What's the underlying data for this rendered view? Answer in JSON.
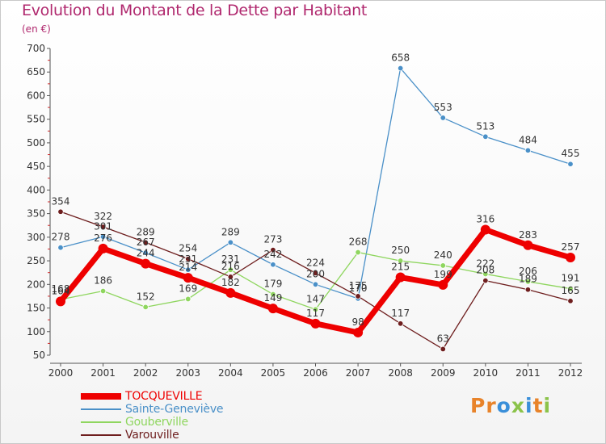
{
  "title": "Evolution du Montant de la Dette par Habitant",
  "unit_label": "(en €)",
  "brand": {
    "text": "Proxiti",
    "letters": [
      "P",
      "r",
      "o",
      "x",
      "i",
      "t",
      "i"
    ],
    "colors": [
      "#e8832a",
      "#e8832a",
      "#3a8fd9",
      "#8bc34a",
      "#3a8fd9",
      "#e8832a",
      "#8bc34a"
    ]
  },
  "chart_data": {
    "type": "line",
    "title": "Evolution du Montant de la Dette par Habitant",
    "xlabel": "",
    "ylabel": "(en €)",
    "x": [
      "2000",
      "2001",
      "2002",
      "2003",
      "2004",
      "2005",
      "2006",
      "2007",
      "2008",
      "2009",
      "2010",
      "2011",
      "2012"
    ],
    "ylim": [
      50,
      700
    ],
    "yticks": [
      50,
      100,
      150,
      200,
      250,
      300,
      350,
      400,
      450,
      500,
      550,
      600,
      650,
      700
    ],
    "grid": false,
    "legend_position": "bottom-left",
    "series": [
      {
        "name": "TOCQUEVILLE",
        "color": "#ee0000",
        "values": [
          164,
          276,
          244,
          214,
          182,
          149,
          117,
          98,
          215,
          199,
          316,
          283,
          257
        ],
        "labels": [
          "164",
          "276",
          "244",
          "214",
          "182",
          "149",
          "117",
          "98",
          "215",
          "199",
          "316",
          "283",
          "257"
        ]
      },
      {
        "name": "Sainte-Geneviève",
        "color": "#4a90c8",
        "values": [
          278,
          301,
          267,
          231,
          289,
          242,
          200,
          170,
          658,
          553,
          513,
          484,
          455
        ],
        "labels": [
          "278",
          "301",
          "267",
          "231",
          "289",
          "242",
          "200",
          "170",
          "658",
          "553",
          "513",
          "484",
          "455"
        ]
      },
      {
        "name": "Gouberville",
        "color": "#8fd65f",
        "values": [
          168,
          186,
          152,
          169,
          231,
          179,
          147,
          268,
          250,
          240,
          222,
          206,
          191
        ],
        "labels": [
          "168",
          "186",
          "152",
          "169",
          "231",
          "179",
          "147",
          "268",
          "250",
          "240",
          "222",
          "206",
          "191"
        ]
      },
      {
        "name": "Varouville",
        "color": "#6e1e1e",
        "values": [
          354,
          322,
          289,
          254,
          216,
          273,
          224,
          175,
          117,
          63,
          208,
          189,
          165
        ],
        "labels": [
          "354",
          "322",
          "289",
          "254",
          "216",
          "273",
          "224",
          "175",
          "117",
          "63",
          "208",
          "189",
          "165"
        ]
      }
    ]
  }
}
